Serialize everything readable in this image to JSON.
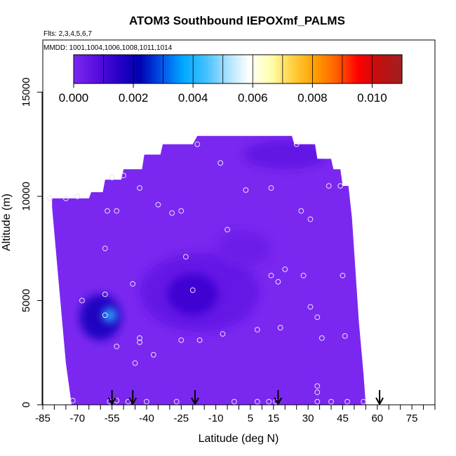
{
  "chart_data": {
    "type": "heatmap",
    "title": "ATOM3 Southbound IEPOXmf_PALMS",
    "subtitle_flights": "Flts: 2,3,4,5,6,7",
    "subtitle_dates": "MMDD: 1001,1004,1006,1008,1011,1014",
    "xlabel": "Latitude (deg N)",
    "ylabel": "Altitude (m)",
    "xlim": [
      -85,
      85
    ],
    "ylim": [
      0,
      17500
    ],
    "x_ticks": [
      -85,
      -70,
      -55,
      -40,
      -25,
      -10,
      5,
      15,
      30,
      45,
      60,
      75
    ],
    "x_tick_labels": [
      "-85",
      "-70",
      "-55",
      "-40",
      "-25",
      "-10",
      "5",
      "15",
      "30",
      "45",
      "60",
      "75"
    ],
    "x_minor_ticks": [
      -85,
      -80,
      -75,
      -70,
      -65,
      -60,
      -55,
      -50,
      -45,
      -40,
      -35,
      -30,
      -25,
      -20,
      -15,
      -10,
      -5,
      0,
      5,
      10,
      15,
      20,
      25,
      30,
      35,
      40,
      45,
      50,
      55,
      60,
      65,
      70,
      75,
      80,
      85
    ],
    "y_ticks": [
      0,
      5000,
      10000,
      15000
    ],
    "y_tick_labels": [
      "0",
      "5000",
      "10000",
      "15000"
    ],
    "colorbar": {
      "min": 0,
      "max": 0.011,
      "ticks": [
        0,
        0.002,
        0.004,
        0.006,
        0.008,
        0.01
      ],
      "tick_labels": [
        "0.000",
        "0.002",
        "0.004",
        "0.006",
        "0.008",
        "0.010"
      ],
      "stops": [
        "#7a28f0",
        "#5a10e0",
        "#2a00c8",
        "#0000b0",
        "#0050e8",
        "#00a8ff",
        "#40c0ff",
        "#a8e0ff",
        "#ffffff",
        "#ffffb0",
        "#ffd040",
        "#ffa000",
        "#ff6000",
        "#ff0000",
        "#c01010",
        "#a02020"
      ]
    },
    "background_color": "#7a28f0",
    "field_outline": [
      [
        -72.5,
        0
      ],
      [
        55,
        0
      ],
      [
        54,
        1500
      ],
      [
        52,
        4000
      ],
      [
        50.5,
        6500
      ],
      [
        49,
        9000
      ],
      [
        47.5,
        10500
      ],
      [
        45,
        10500
      ],
      [
        44,
        11300
      ],
      [
        41,
        11300
      ],
      [
        40,
        11800
      ],
      [
        34,
        11800
      ],
      [
        33,
        12500
      ],
      [
        24,
        12500
      ],
      [
        23,
        12900
      ],
      [
        -18,
        12900
      ],
      [
        -20,
        12500
      ],
      [
        -33,
        12500
      ],
      [
        -34,
        12000
      ],
      [
        -41,
        12000
      ],
      [
        -42,
        11300
      ],
      [
        -50,
        11300
      ],
      [
        -51,
        10800
      ],
      [
        -58,
        10800
      ],
      [
        -59,
        10200
      ],
      [
        -64,
        10200
      ],
      [
        -65,
        9900
      ],
      [
        -81,
        9900
      ],
      [
        -81,
        9500
      ],
      [
        -79,
        7000
      ],
      [
        -77,
        4500
      ],
      [
        -75,
        2000
      ]
    ],
    "field_patches": [
      {
        "x": -60,
        "y": 4200,
        "rx": 9,
        "ry": 1100,
        "value": 0.0018
      },
      {
        "x": -56,
        "y": 4300,
        "rx": 3,
        "ry": 350,
        "value": 0.0042
      },
      {
        "x": -17,
        "y": 5400,
        "rx": 26,
        "ry": 1900,
        "value": 0.0005
      },
      {
        "x": -20,
        "y": 5300,
        "rx": 11,
        "ry": 1000,
        "value": 0.0012
      },
      {
        "x": 20,
        "y": 12000,
        "rx": 18,
        "ry": 700,
        "value": 0.0006
      },
      {
        "x": 2,
        "y": 7500,
        "rx": 12,
        "ry": 900,
        "value": 0.0003
      }
    ],
    "samples": [
      [
        -72,
        200
      ],
      [
        -56,
        150
      ],
      [
        -53,
        200
      ],
      [
        -48,
        150
      ],
      [
        -40,
        150
      ],
      [
        -27,
        150
      ],
      [
        -2,
        150
      ],
      [
        8,
        150
      ],
      [
        13,
        150
      ],
      [
        16,
        150
      ],
      [
        34,
        150
      ],
      [
        40,
        150
      ],
      [
        47,
        150
      ],
      [
        54,
        150
      ],
      [
        34,
        600
      ],
      [
        34,
        900
      ],
      [
        -45,
        2000
      ],
      [
        -37,
        2400
      ],
      [
        -53,
        2800
      ],
      [
        -43,
        3000
      ],
      [
        -43,
        3200
      ],
      [
        -25,
        3100
      ],
      [
        -17,
        3100
      ],
      [
        -7,
        3400
      ],
      [
        8,
        3600
      ],
      [
        18,
        3700
      ],
      [
        36,
        3200
      ],
      [
        46,
        3300
      ],
      [
        -68,
        5000
      ],
      [
        -58,
        4300
      ],
      [
        -58,
        5300
      ],
      [
        -46,
        5800
      ],
      [
        -20,
        5500
      ],
      [
        -23,
        7100
      ],
      [
        14,
        6200
      ],
      [
        17,
        5900
      ],
      [
        20,
        6500
      ],
      [
        28,
        6200
      ],
      [
        31,
        4700
      ],
      [
        34,
        4200
      ],
      [
        45,
        6200
      ],
      [
        -58,
        7500
      ],
      [
        -5,
        8400
      ],
      [
        -57,
        9300
      ],
      [
        -53,
        9300
      ],
      [
        -35,
        9600
      ],
      [
        -29,
        9200
      ],
      [
        -25,
        9300
      ],
      [
        27,
        9300
      ],
      [
        31,
        8900
      ],
      [
        -82,
        9900
      ],
      [
        -75,
        9900
      ],
      [
        -70,
        10000
      ],
      [
        -43,
        10400
      ],
      [
        -50,
        11000
      ],
      [
        -55,
        10900
      ],
      [
        3,
        10300
      ],
      [
        14,
        10400
      ],
      [
        39,
        10500
      ],
      [
        44,
        10500
      ],
      [
        -8,
        11600
      ],
      [
        -18,
        12500
      ],
      [
        25,
        12500
      ]
    ],
    "flight_markers": [
      -55,
      -46,
      -19,
      17,
      61
    ]
  }
}
